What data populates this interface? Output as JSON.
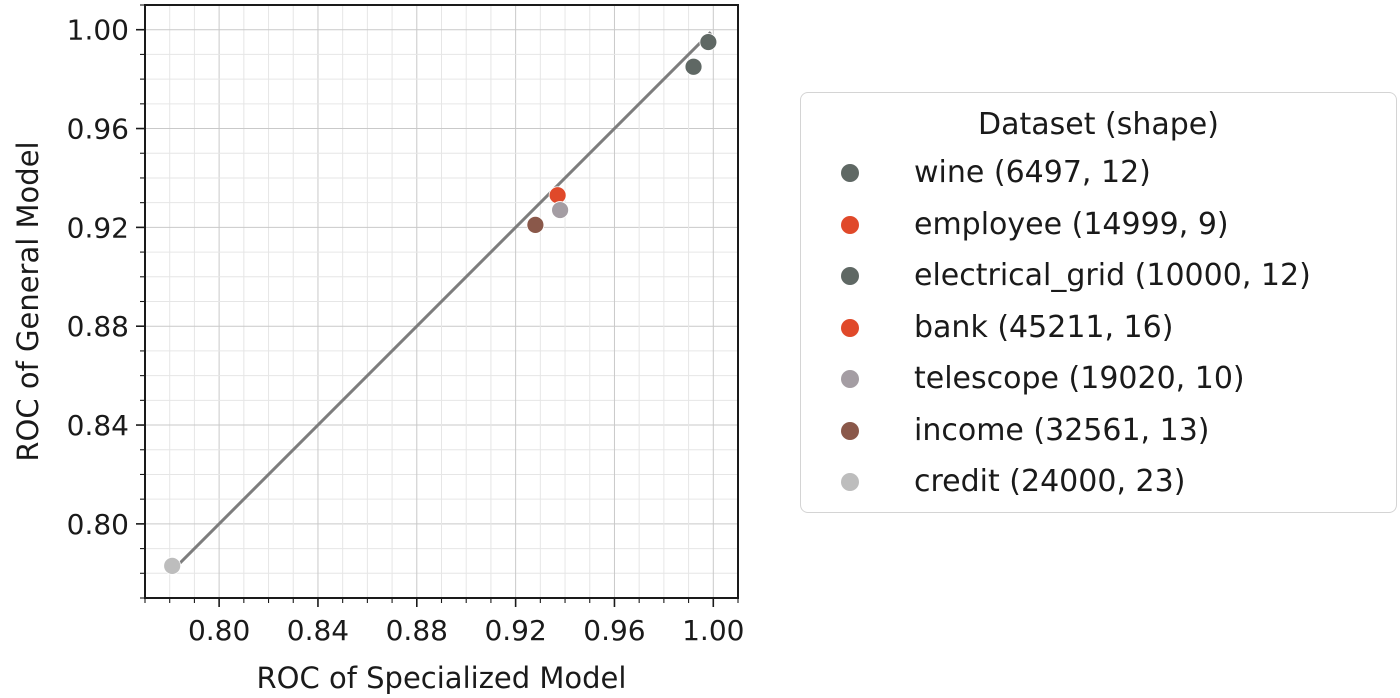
{
  "chart_data": {
    "type": "scatter",
    "title": "",
    "xlabel": "ROC of Specialized Model",
    "ylabel": "ROC of General Model",
    "xlim": [
      0.77,
      1.01
    ],
    "ylim": [
      0.77,
      1.01
    ],
    "xticks": [
      "0.80",
      "0.84",
      "0.88",
      "0.92",
      "0.96",
      "1.00"
    ],
    "yticks": [
      "0.80",
      "0.84",
      "0.88",
      "0.92",
      "0.96",
      "1.00"
    ],
    "grid": true,
    "diagonal_line": {
      "from": [
        0.781,
        0.781
      ],
      "to": [
        0.999,
        0.999
      ],
      "color": "#7d7d7d"
    },
    "legend": {
      "title": "Dataset (shape)",
      "placement": "right"
    },
    "series": [
      {
        "name": "wine (6497, 12)",
        "color": "#5f6864",
        "points": [
          [
            0.998,
            0.995
          ],
          [
            0.992,
            0.985
          ]
        ]
      },
      {
        "name": "employee (14999, 9)",
        "color": "#e0492a",
        "points": [
          [
            0.937,
            0.933
          ]
        ]
      },
      {
        "name": "electrical_grid (10000, 12)",
        "color": "#5f6864",
        "points": []
      },
      {
        "name": "bank (45211, 16)",
        "color": "#e0492a",
        "points": []
      },
      {
        "name": "telescope (19020, 10)",
        "color": "#a49da3",
        "points": [
          [
            0.938,
            0.927
          ]
        ]
      },
      {
        "name": "income (32561, 13)",
        "color": "#8a584a",
        "points": [
          [
            0.928,
            0.921
          ]
        ]
      },
      {
        "name": "credit (24000, 23)",
        "color": "#bdbdbd",
        "points": [
          [
            0.781,
            0.783
          ]
        ]
      }
    ]
  }
}
